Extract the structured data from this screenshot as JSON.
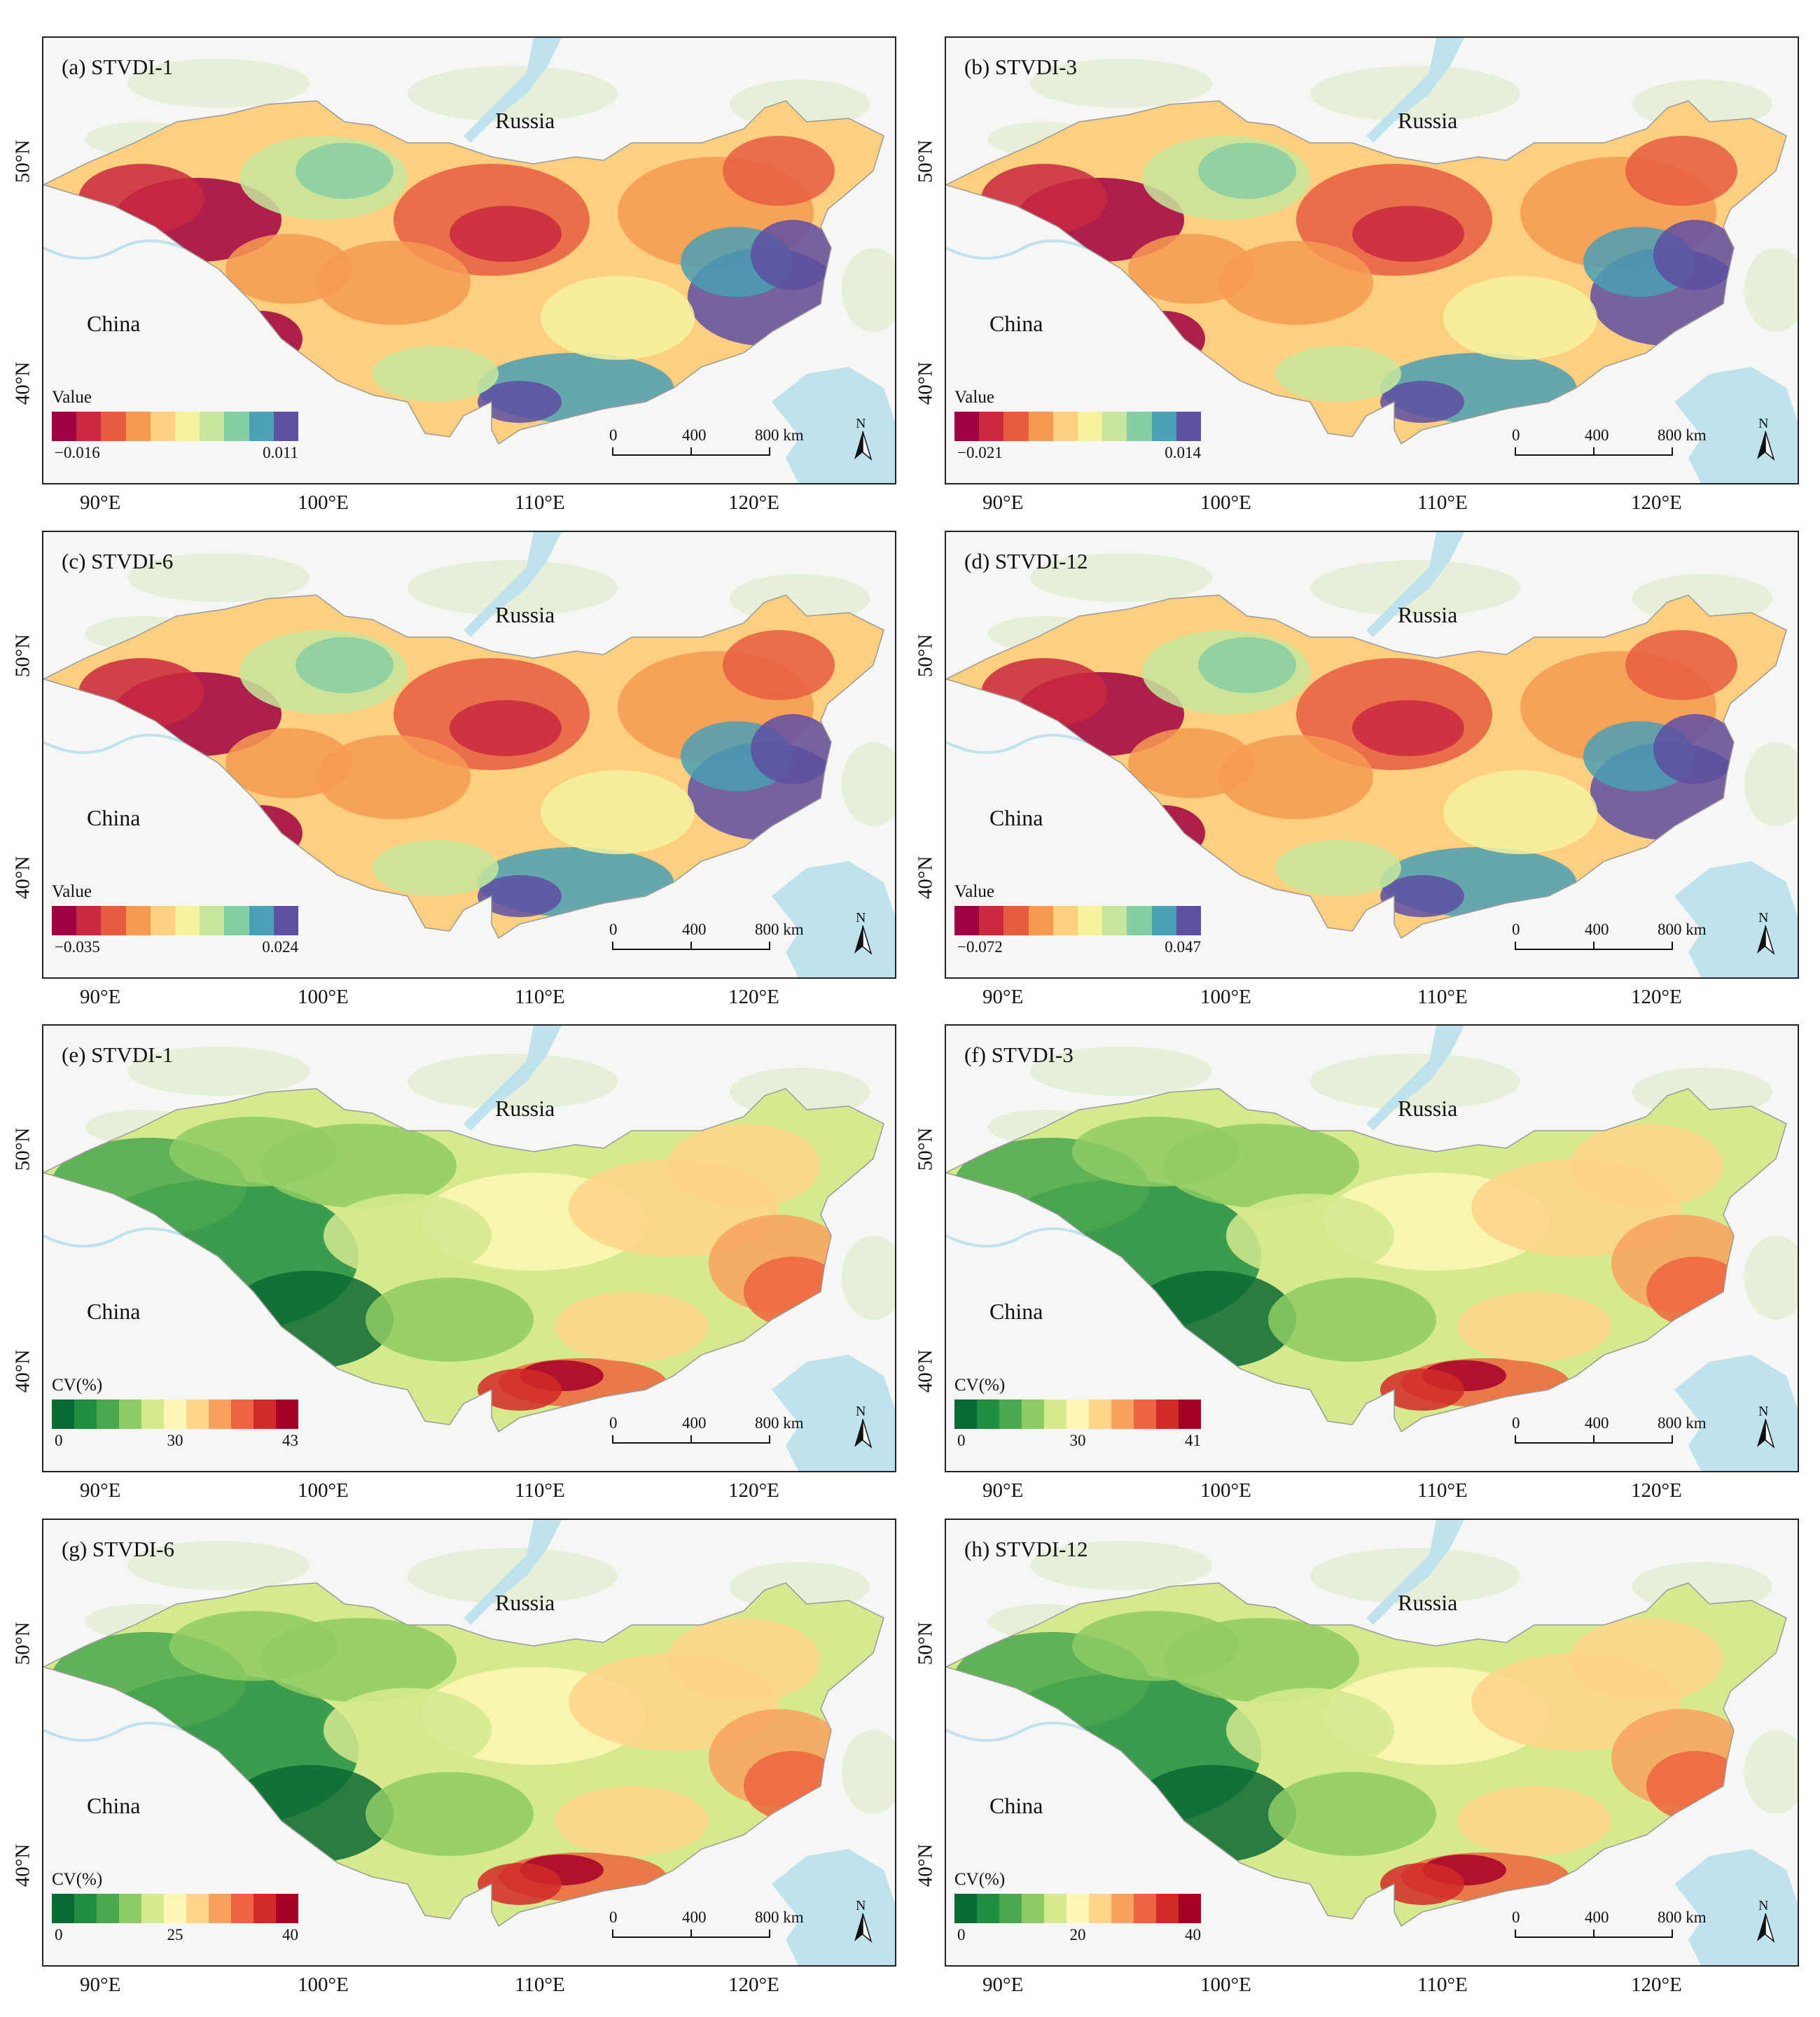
{
  "figure": {
    "labels": {
      "russia": "Russia",
      "china": "China",
      "n_arrow": "N"
    },
    "x_ticks": [
      "90°E",
      "100°E",
      "110°E",
      "120°E"
    ],
    "y_ticks": [
      "50°N",
      "40°N"
    ],
    "scale_bar": [
      "0",
      "400",
      "800 km"
    ],
    "panels": [
      {
        "title": "(a) STVDI-1",
        "legend_title": "Value",
        "legend_labels": [
          "−0.016",
          "0.011"
        ],
        "type": "trend"
      },
      {
        "title": "(b) STVDI-3",
        "legend_title": "Value",
        "legend_labels": [
          "−0.021",
          "0.014"
        ],
        "type": "trend"
      },
      {
        "title": "(c) STVDI-6",
        "legend_title": "Value",
        "legend_labels": [
          "−0.035",
          "0.024"
        ],
        "type": "trend"
      },
      {
        "title": "(d) STVDI-12",
        "legend_title": "Value",
        "legend_labels": [
          "−0.072",
          "0.047"
        ],
        "type": "trend"
      },
      {
        "title": "(e) STVDI-1",
        "legend_title": "CV(%)",
        "legend_labels": [
          "0",
          "30",
          "43"
        ],
        "type": "cv"
      },
      {
        "title": "(f) STVDI-3",
        "legend_title": "CV(%)",
        "legend_labels": [
          "0",
          "30",
          "41"
        ],
        "type": "cv"
      },
      {
        "title": "(g) STVDI-6",
        "legend_title": "CV(%)",
        "legend_labels": [
          "0",
          "25",
          "40"
        ],
        "type": "cv"
      },
      {
        "title": "(h) STVDI-12",
        "legend_title": "CV(%)",
        "legend_labels": [
          "0",
          "20",
          "40"
        ],
        "type": "cv"
      }
    ],
    "colors": {
      "trend_ramp": [
        "#9e0142",
        "#c8293e",
        "#e65d3f",
        "#f69a52",
        "#fdcf7f",
        "#f6f2a0",
        "#c6e69c",
        "#86cea3",
        "#4aa0b4",
        "#5e4fa2"
      ],
      "cv_ramp": [
        "#0a6a34",
        "#1f8e41",
        "#4aa84e",
        "#8fcb64",
        "#d5ea8e",
        "#fdf7b6",
        "#fed58a",
        "#f9a25d",
        "#ec6440",
        "#d12a27",
        "#a50026"
      ],
      "water": "#bfe2ef",
      "land": "#e6efd8",
      "background": "#f6f6f4"
    }
  }
}
